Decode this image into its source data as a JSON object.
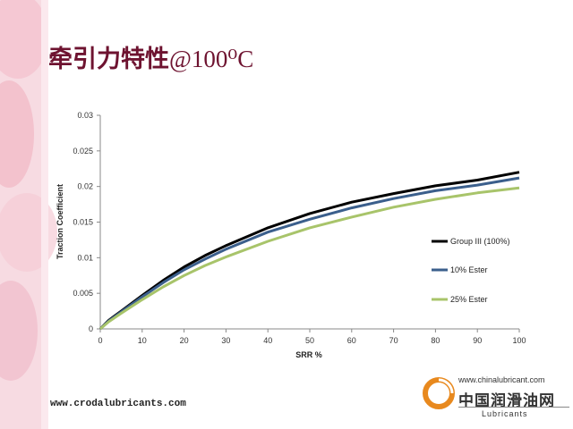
{
  "slide": {
    "title_main": "牵引力特性",
    "title_suffix": "@100⁰C",
    "footer_url": "www.crodalubricants.com",
    "logo": {
      "url": "www.chinalubricant.com",
      "name_cn": "中国润滑油网",
      "name_en": "Lubricants"
    }
  },
  "colors": {
    "title": "#6e1330",
    "group3": "#000000",
    "ester10": "#3b5f8c",
    "ester25": "#a8c46a",
    "decor_pink": "#f2b8c6"
  },
  "chart_data": {
    "type": "line",
    "title": "",
    "xlabel": "SRR %",
    "ylabel": "Traction Coefficient",
    "xlim": [
      0,
      100
    ],
    "ylim": [
      0,
      0.03
    ],
    "xticks": [
      "0",
      "10",
      "20",
      "30",
      "40",
      "50",
      "60",
      "70",
      "80",
      "90",
      "100"
    ],
    "yticks": [
      "0",
      "0.005",
      "0.01",
      "0.015",
      "0.02",
      "0.025",
      "0.03"
    ],
    "grid": false,
    "legend_position": "right",
    "x": [
      0,
      2,
      5,
      10,
      15,
      20,
      25,
      30,
      40,
      50,
      60,
      70,
      80,
      90,
      100
    ],
    "series": [
      {
        "name": "Group III (100%)",
        "color": "#000000",
        "values": [
          0,
          0.0012,
          0.0025,
          0.0047,
          0.0068,
          0.0087,
          0.0103,
          0.0117,
          0.0142,
          0.0162,
          0.0178,
          0.019,
          0.0201,
          0.0209,
          0.022
        ]
      },
      {
        "name": "10% Ester",
        "color": "#3b5f8c",
        "values": [
          0,
          0.0011,
          0.0024,
          0.0045,
          0.0065,
          0.0083,
          0.0098,
          0.0112,
          0.0136,
          0.0154,
          0.017,
          0.0183,
          0.0194,
          0.0202,
          0.0212
        ]
      },
      {
        "name": "25% Ester",
        "color": "#a8c46a",
        "values": [
          0,
          0.001,
          0.0022,
          0.0041,
          0.0059,
          0.0075,
          0.0089,
          0.0101,
          0.0123,
          0.0142,
          0.0157,
          0.0171,
          0.0182,
          0.0191,
          0.0198
        ]
      }
    ]
  }
}
